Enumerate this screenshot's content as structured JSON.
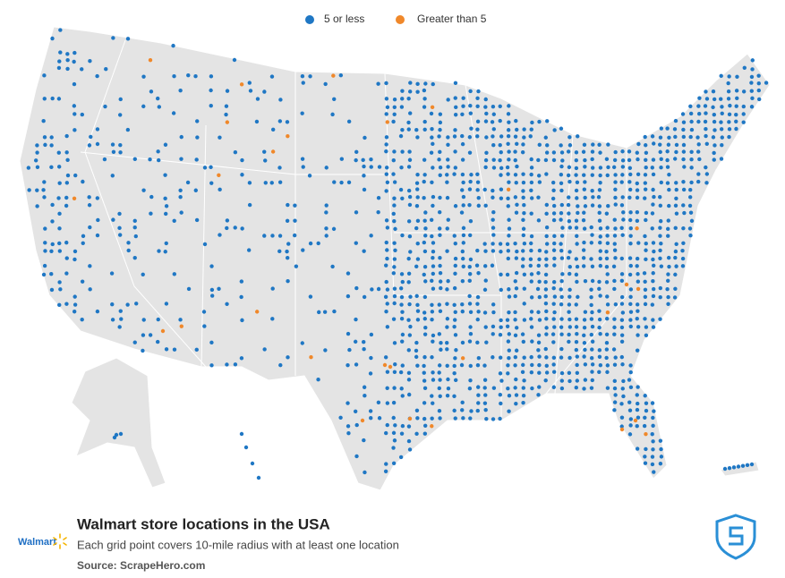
{
  "legend": {
    "items": [
      {
        "label": "5 or less",
        "color": "#1f77c4"
      },
      {
        "label": "Greater than 5",
        "color": "#f0882a"
      }
    ]
  },
  "footer": {
    "logo": "Walmart",
    "title": "Walmart store locations in the USA",
    "subtitle": "Each grid point covers 10-mile radius with at least one location",
    "source": "Source: ScrapeHero.com"
  }
}
